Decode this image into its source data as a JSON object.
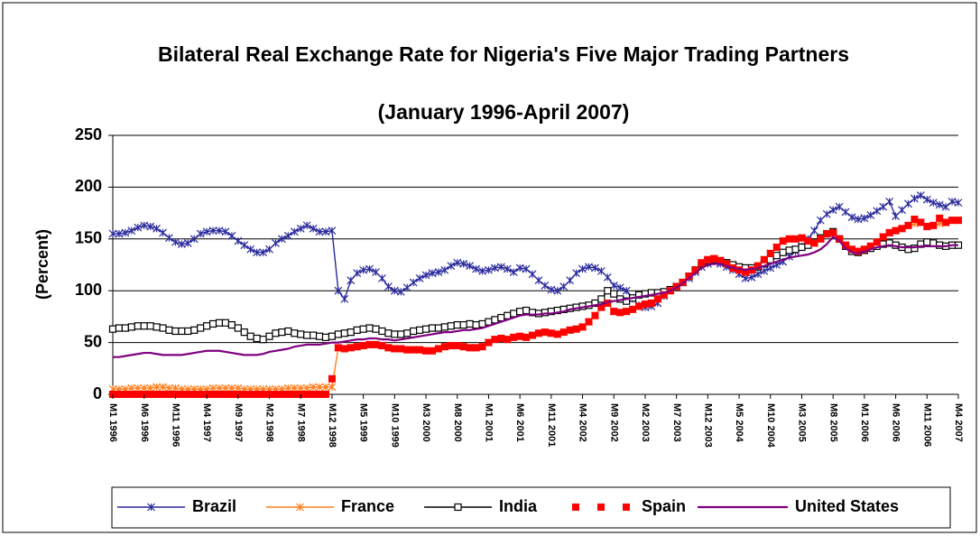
{
  "chart_data": {
    "type": "line",
    "title": "Bilateral Real Exchange Rate for Nigeria's Five Major Trading Partners",
    "subtitle": "(January 1996-April 2007)",
    "y_label": "(Percent)",
    "ylim": [
      0,
      250
    ],
    "yticks": [
      0,
      50,
      100,
      150,
      200,
      250
    ],
    "grid": true,
    "legend": "bottom",
    "categories": [
      "M1 1996",
      null,
      null,
      null,
      null,
      "M6 1996",
      null,
      null,
      null,
      null,
      "M11 1996",
      null,
      null,
      null,
      null,
      "M4 1997",
      null,
      null,
      null,
      null,
      "M9 1997",
      null,
      null,
      null,
      null,
      "M2 1998",
      null,
      null,
      null,
      null,
      "M7 1998",
      null,
      null,
      null,
      null,
      "M12 1998",
      null,
      null,
      null,
      null,
      "M5 1999",
      null,
      null,
      null,
      null,
      "M10 1999",
      null,
      null,
      null,
      null,
      "M3 2000",
      null,
      null,
      null,
      null,
      "M8 2000",
      null,
      null,
      null,
      null,
      "M1 2001",
      null,
      null,
      null,
      null,
      "M6 2001",
      null,
      null,
      null,
      null,
      "M11 2001",
      null,
      null,
      null,
      null,
      "M4 2002",
      null,
      null,
      null,
      null,
      "M9 2002",
      null,
      null,
      null,
      null,
      "M2 2003",
      null,
      null,
      null,
      null,
      "M7 2003",
      null,
      null,
      null,
      null,
      "M12 2003",
      null,
      null,
      null,
      null,
      "M5 2004",
      null,
      null,
      null,
      null,
      "M10 2004",
      null,
      null,
      null,
      null,
      "M3 2005",
      null,
      null,
      null,
      null,
      "M8 2005",
      null,
      null,
      null,
      null,
      "M1 2006",
      null,
      null,
      null,
      null,
      "M6 2006",
      null,
      null,
      null,
      null,
      "M11 2006",
      null,
      null,
      null,
      null,
      "M4 2007"
    ],
    "series": [
      {
        "name": "Brazil",
        "color": "#2b2b9c",
        "marker": "asterisk",
        "line": true,
        "values": [
          155,
          155,
          156,
          158,
          161,
          163,
          162,
          160,
          156,
          151,
          147,
          145,
          146,
          150,
          155,
          157,
          158,
          158,
          157,
          153,
          148,
          144,
          140,
          137,
          137,
          140,
          146,
          150,
          153,
          157,
          160,
          163,
          160,
          157,
          157,
          158,
          100,
          92,
          110,
          117,
          120,
          121,
          118,
          112,
          104,
          100,
          99,
          103,
          108,
          112,
          115,
          117,
          118,
          120,
          124,
          127,
          126,
          124,
          121,
          119,
          120,
          122,
          123,
          121,
          118,
          122,
          121,
          116,
          110,
          105,
          101,
          100,
          104,
          110,
          117,
          121,
          123,
          122,
          119,
          113,
          105,
          103,
          100,
          92,
          86,
          84,
          85,
          88,
          95,
          100,
          104,
          108,
          112,
          118,
          123,
          126,
          128,
          126,
          123,
          120,
          116,
          112,
          113,
          116,
          119,
          122,
          125,
          128,
          133,
          138,
          143,
          150,
          158,
          168,
          174,
          178,
          181,
          176,
          171,
          169,
          170,
          173,
          177,
          181,
          186,
          172,
          178,
          184,
          189,
          192,
          188,
          185,
          183,
          181,
          186,
          185
        ]
      },
      {
        "name": "France",
        "color": "#ff7f1e",
        "marker": "asterisk",
        "line": true,
        "values": [
          5,
          5,
          5,
          6,
          6,
          6,
          6,
          7,
          7,
          6,
          6,
          5,
          5,
          5,
          5,
          5,
          6,
          6,
          6,
          6,
          6,
          5,
          5,
          5,
          5,
          5,
          5,
          5,
          6,
          6,
          6,
          6,
          7,
          7,
          7,
          7,
          45,
          44,
          45,
          46,
          47,
          48,
          48,
          47,
          45,
          44,
          44,
          43,
          43,
          43,
          42,
          42,
          44,
          46,
          47,
          47,
          46,
          45,
          45,
          46,
          50,
          53,
          54,
          53,
          55,
          56,
          55,
          57,
          59,
          60,
          59,
          58,
          60,
          62,
          63,
          65,
          70,
          76,
          84,
          88,
          80,
          79,
          80,
          82,
          85,
          87,
          88,
          92,
          96,
          100,
          104,
          108,
          114,
          120,
          127,
          130,
          131,
          129,
          126,
          122,
          120,
          118,
          120,
          124,
          130,
          136,
          142,
          148,
          150,
          150,
          151,
          148,
          146,
          150,
          155,
          156,
          150,
          144,
          140,
          138,
          140,
          143,
          147,
          152,
          156,
          158,
          160,
          163,
          165,
          166,
          162,
          163,
          165,
          166,
          168,
          168
        ]
      },
      {
        "name": "India",
        "color": "#000000",
        "marker": "square",
        "line": true,
        "values": [
          63,
          64,
          64,
          65,
          66,
          66,
          66,
          65,
          64,
          62,
          61,
          61,
          61,
          62,
          64,
          66,
          68,
          69,
          69,
          67,
          64,
          60,
          56,
          54,
          53,
          56,
          59,
          60,
          61,
          59,
          58,
          57,
          57,
          56,
          55,
          56,
          58,
          59,
          60,
          62,
          63,
          64,
          63,
          61,
          59,
          58,
          58,
          59,
          61,
          62,
          63,
          64,
          64,
          65,
          66,
          67,
          67,
          68,
          67,
          68,
          70,
          72,
          74,
          76,
          78,
          80,
          81,
          79,
          78,
          79,
          80,
          81,
          82,
          83,
          84,
          85,
          86,
          88,
          92,
          100,
          97,
          92,
          90,
          93,
          96,
          97,
          98,
          98,
          99,
          101,
          104,
          108,
          114,
          120,
          126,
          129,
          130,
          129,
          127,
          125,
          123,
          122,
          122,
          123,
          126,
          130,
          134,
          137,
          139,
          140,
          142,
          144,
          147,
          151,
          155,
          157,
          150,
          143,
          138,
          137,
          139,
          141,
          143,
          145,
          146,
          144,
          142,
          140,
          141,
          145,
          147,
          146,
          144,
          143,
          144,
          144
        ]
      },
      {
        "name": "Spain",
        "color": "#ff0000",
        "marker": "redsquare",
        "line": false,
        "values": [
          0,
          0,
          0,
          0,
          0,
          0,
          0,
          0,
          0,
          0,
          0,
          0,
          0,
          0,
          0,
          0,
          0,
          0,
          0,
          0,
          0,
          0,
          0,
          0,
          0,
          0,
          0,
          0,
          0,
          0,
          0,
          0,
          0,
          0,
          0,
          15,
          45,
          44,
          45,
          46,
          47,
          48,
          48,
          47,
          45,
          44,
          44,
          43,
          43,
          43,
          42,
          42,
          44,
          46,
          47,
          47,
          46,
          45,
          45,
          46,
          50,
          53,
          54,
          53,
          55,
          56,
          55,
          57,
          59,
          60,
          59,
          58,
          60,
          62,
          63,
          65,
          70,
          76,
          84,
          88,
          80,
          79,
          80,
          82,
          85,
          87,
          88,
          92,
          96,
          100,
          104,
          108,
          114,
          120,
          127,
          130,
          131,
          129,
          126,
          122,
          120,
          118,
          120,
          124,
          130,
          136,
          142,
          148,
          150,
          150,
          151,
          148,
          146,
          150,
          155,
          156,
          150,
          144,
          140,
          138,
          140,
          143,
          147,
          152,
          156,
          158,
          160,
          163,
          169,
          166,
          162,
          163,
          170,
          166,
          168,
          168
        ]
      },
      {
        "name": "United States",
        "color": "#800080",
        "marker": "none",
        "line": true,
        "values": [
          36,
          36,
          37,
          38,
          39,
          40,
          40,
          39,
          38,
          38,
          38,
          38,
          39,
          40,
          41,
          42,
          42,
          42,
          41,
          40,
          39,
          38,
          38,
          38,
          39,
          41,
          42,
          43,
          44,
          46,
          47,
          48,
          48,
          48,
          49,
          50,
          50,
          51,
          52,
          53,
          53,
          54,
          54,
          53,
          53,
          52,
          53,
          54,
          55,
          56,
          57,
          58,
          59,
          60,
          60,
          61,
          62,
          62,
          63,
          64,
          66,
          68,
          70,
          72,
          74,
          76,
          77,
          77,
          77,
          78,
          78,
          79,
          80,
          82,
          83,
          84,
          85,
          86,
          87,
          89,
          90,
          91,
          92,
          93,
          94,
          95,
          96,
          97,
          98,
          100,
          103,
          107,
          112,
          117,
          122,
          125,
          126,
          126,
          124,
          122,
          121,
          120,
          121,
          122,
          124,
          126,
          128,
          130,
          132,
          133,
          134,
          135,
          137,
          140,
          145,
          152,
          148,
          141,
          137,
          136,
          138,
          140,
          142,
          143,
          144,
          143,
          142,
          142,
          142,
          143,
          143,
          143,
          143,
          143,
          144,
          144
        ]
      }
    ]
  }
}
